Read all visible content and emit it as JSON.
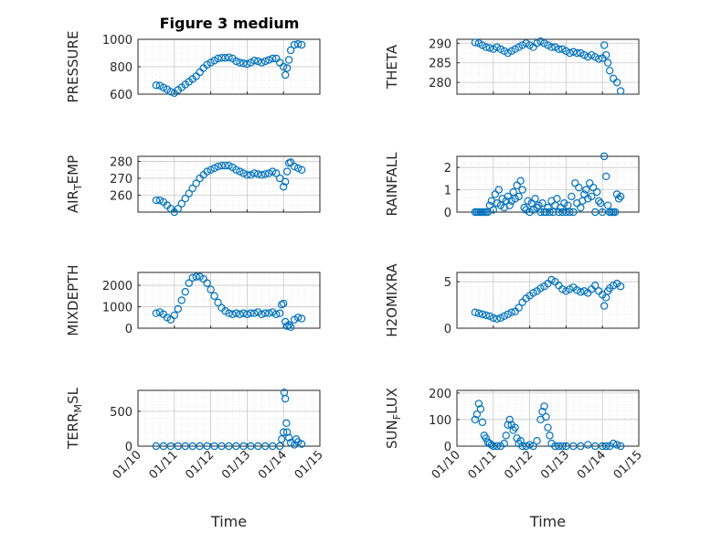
{
  "chart_data": {
    "type": "scatter",
    "title": "Figure 3 medium",
    "x_tick_labels": [
      "01/10",
      "01/11",
      "01/12",
      "01/13",
      "01/14",
      "01/15"
    ],
    "x_label": "Time",
    "marker_color": "#0072BD",
    "grid": true,
    "panels": [
      {
        "id": "pressure",
        "ylabel": "PRESSURE",
        "ylim": [
          600,
          1000
        ],
        "yticks": [
          600,
          800,
          1000
        ],
        "ytick_labels": [
          "600",
          "800",
          "1000"
        ],
        "x": [
          0.5,
          0.6,
          0.7,
          0.8,
          0.9,
          1.0,
          1.1,
          1.2,
          1.3,
          1.4,
          1.5,
          1.6,
          1.7,
          1.8,
          1.9,
          2.0,
          2.1,
          2.2,
          2.3,
          2.4,
          2.5,
          2.6,
          2.7,
          2.8,
          2.9,
          3.0,
          3.1,
          3.2,
          3.3,
          3.4,
          3.5,
          3.6,
          3.7,
          3.8,
          3.9,
          4.0,
          4.05,
          4.1,
          4.15,
          4.2,
          4.3,
          4.4,
          4.5
        ],
        "y": [
          665,
          662,
          648,
          635,
          618,
          608,
          630,
          650,
          670,
          690,
          710,
          730,
          760,
          790,
          815,
          830,
          845,
          860,
          865,
          865,
          868,
          860,
          840,
          830,
          825,
          820,
          830,
          845,
          840,
          830,
          840,
          850,
          860,
          860,
          830,
          800,
          740,
          790,
          850,
          920,
          960,
          965,
          960
        ]
      },
      {
        "id": "theta",
        "ylabel": "THETA",
        "ylim": [
          277,
          291
        ],
        "yticks": [
          280,
          285,
          290
        ],
        "ytick_labels": [
          "280",
          "285",
          "290"
        ],
        "x": [
          0.5,
          0.6,
          0.7,
          0.8,
          0.9,
          1.0,
          1.1,
          1.2,
          1.3,
          1.4,
          1.5,
          1.6,
          1.7,
          1.8,
          1.9,
          2.0,
          2.1,
          2.2,
          2.3,
          2.4,
          2.5,
          2.6,
          2.7,
          2.8,
          2.9,
          3.0,
          3.1,
          3.2,
          3.3,
          3.4,
          3.5,
          3.6,
          3.7,
          3.8,
          3.9,
          4.0,
          4.05,
          4.1,
          4.15,
          4.2,
          4.3,
          4.4,
          4.5
        ],
        "y": [
          290.2,
          290,
          289.5,
          289,
          288.8,
          288.5,
          289,
          288.5,
          288,
          287.5,
          288,
          288.5,
          289,
          289.5,
          290,
          289.5,
          289,
          290,
          290.5,
          290,
          289.5,
          289,
          289,
          288.5,
          288.5,
          288,
          287.5,
          287.8,
          287.5,
          287.5,
          287,
          286.5,
          287,
          286.5,
          286,
          286.2,
          289.5,
          287,
          285,
          283,
          281,
          280,
          277.8
        ]
      },
      {
        "id": "air_temp",
        "ylabel": "AIR_TEMP",
        "ylim": [
          250,
          283
        ],
        "yticks": [
          260,
          270,
          280
        ],
        "ytick_labels": [
          "260",
          "270",
          "280"
        ],
        "x": [
          0.5,
          0.6,
          0.7,
          0.8,
          0.9,
          1.0,
          1.1,
          1.2,
          1.3,
          1.4,
          1.5,
          1.6,
          1.7,
          1.8,
          1.9,
          2.0,
          2.1,
          2.2,
          2.3,
          2.4,
          2.5,
          2.6,
          2.7,
          2.8,
          2.9,
          3.0,
          3.1,
          3.2,
          3.3,
          3.4,
          3.5,
          3.6,
          3.7,
          3.8,
          3.9,
          4.0,
          4.05,
          4.1,
          4.15,
          4.2,
          4.3,
          4.4,
          4.5
        ],
        "y": [
          257,
          257,
          256,
          254,
          252,
          250,
          252,
          255,
          258,
          261,
          264,
          267,
          270,
          272,
          274,
          275,
          276,
          277,
          277.5,
          277.5,
          277.5,
          276.5,
          275,
          274,
          273,
          272,
          272,
          273,
          272.5,
          272,
          272.5,
          273,
          274,
          273,
          270,
          265,
          268,
          274,
          279,
          279.5,
          277,
          276,
          275
        ]
      },
      {
        "id": "rainfall",
        "ylabel": "RAINFALL",
        "ylim": [
          0,
          2.5
        ],
        "yticks": [
          0,
          1,
          2
        ],
        "ytick_labels": [
          "0",
          "1",
          "2"
        ],
        "x": [
          0.5,
          0.55,
          0.6,
          0.65,
          0.7,
          0.75,
          0.8,
          0.85,
          0.9,
          0.95,
          1.0,
          1.05,
          1.1,
          1.15,
          1.2,
          1.25,
          1.3,
          1.35,
          1.4,
          1.45,
          1.5,
          1.55,
          1.6,
          1.65,
          1.7,
          1.75,
          1.8,
          1.85,
          1.9,
          1.95,
          2.0,
          2.05,
          2.1,
          2.15,
          2.2,
          2.25,
          2.3,
          2.35,
          2.4,
          2.45,
          2.5,
          2.55,
          2.6,
          2.65,
          2.7,
          2.75,
          2.8,
          2.85,
          2.9,
          2.95,
          3.0,
          3.05,
          3.1,
          3.15,
          3.2,
          3.25,
          3.3,
          3.35,
          3.4,
          3.45,
          3.5,
          3.55,
          3.6,
          3.65,
          3.7,
          3.75,
          3.8,
          3.85,
          3.9,
          3.95,
          4.0,
          4.05,
          4.1,
          4.15,
          4.2,
          4.25,
          4.3,
          4.35,
          4.4,
          4.45,
          4.5
        ],
        "y": [
          0,
          0,
          0,
          0,
          0,
          0,
          0,
          0,
          0.3,
          0.5,
          0.1,
          0.8,
          0.4,
          1.0,
          0.3,
          0.6,
          0.2,
          0.5,
          0.7,
          0.3,
          0.5,
          0.9,
          0.6,
          1.2,
          0.7,
          1.4,
          1.0,
          0.2,
          0.1,
          0.5,
          0,
          0.4,
          0.1,
          0.6,
          0.2,
          0.3,
          0,
          0.4,
          0,
          0,
          0.2,
          0,
          0.5,
          0,
          0.3,
          0.6,
          0,
          0.2,
          0,
          0.4,
          0,
          0.3,
          0,
          0.7,
          0,
          1.3,
          0.4,
          1.1,
          0.2,
          0.5,
          0.8,
          1.0,
          0.6,
          1.3,
          0.7,
          1.1,
          0,
          0.9,
          0.5,
          0.4,
          0,
          2.5,
          1.6,
          0.3,
          0,
          0,
          0,
          0,
          0.8,
          0.6,
          0.7
        ]
      },
      {
        "id": "mixdepth",
        "ylabel": "MIXDEPTH",
        "ylim": [
          0,
          2600
        ],
        "yticks": [
          0,
          1000,
          2000
        ],
        "ytick_labels": [
          "0",
          "1000",
          "2000"
        ],
        "x": [
          0.5,
          0.6,
          0.7,
          0.8,
          0.9,
          1.0,
          1.1,
          1.2,
          1.3,
          1.4,
          1.5,
          1.6,
          1.7,
          1.8,
          1.9,
          2.0,
          2.1,
          2.2,
          2.3,
          2.4,
          2.5,
          2.6,
          2.7,
          2.8,
          2.9,
          3.0,
          3.1,
          3.2,
          3.3,
          3.4,
          3.5,
          3.6,
          3.7,
          3.8,
          3.9,
          3.95,
          4.0,
          4.05,
          4.1,
          4.15,
          4.2,
          4.3,
          4.4,
          4.5
        ],
        "y": [
          700,
          750,
          650,
          500,
          400,
          600,
          900,
          1300,
          1700,
          2100,
          2350,
          2400,
          2400,
          2300,
          2100,
          1800,
          1500,
          1200,
          950,
          800,
          700,
          650,
          700,
          650,
          700,
          650,
          700,
          700,
          750,
          650,
          700,
          700,
          750,
          650,
          700,
          1100,
          1150,
          300,
          100,
          150,
          50,
          400,
          500,
          450
        ]
      },
      {
        "id": "h2omixra",
        "ylabel": "H2OMIXRA",
        "ylim": [
          0,
          6
        ],
        "yticks": [
          0,
          5
        ],
        "ytick_labels": [
          "0",
          "5"
        ],
        "x": [
          0.5,
          0.6,
          0.7,
          0.8,
          0.9,
          1.0,
          1.1,
          1.2,
          1.3,
          1.4,
          1.5,
          1.6,
          1.7,
          1.8,
          1.9,
          2.0,
          2.1,
          2.2,
          2.3,
          2.4,
          2.5,
          2.6,
          2.7,
          2.8,
          2.9,
          3.0,
          3.1,
          3.2,
          3.3,
          3.4,
          3.5,
          3.6,
          3.7,
          3.8,
          3.9,
          4.0,
          4.05,
          4.1,
          4.15,
          4.2,
          4.3,
          4.4,
          4.5
        ],
        "y": [
          1.7,
          1.6,
          1.5,
          1.4,
          1.3,
          1.1,
          1.0,
          1.1,
          1.3,
          1.5,
          1.7,
          1.8,
          2.2,
          2.8,
          3.2,
          3.5,
          3.8,
          4.0,
          4.3,
          4.5,
          4.8,
          5.2,
          5.0,
          4.6,
          4.2,
          4.0,
          4.2,
          4.4,
          4.1,
          3.9,
          4.0,
          3.8,
          4.2,
          4.6,
          4.0,
          3.6,
          2.4,
          3.3,
          4.0,
          4.3,
          4.6,
          4.8,
          4.5
        ]
      },
      {
        "id": "terr_msl",
        "ylabel": "TERR_MSL",
        "ylim": [
          0,
          800
        ],
        "yticks": [
          0,
          500
        ],
        "ytick_labels": [
          "0",
          "500"
        ],
        "x": [
          0.5,
          0.7,
          0.9,
          1.1,
          1.3,
          1.5,
          1.7,
          1.9,
          2.1,
          2.3,
          2.5,
          2.7,
          2.9,
          3.1,
          3.3,
          3.5,
          3.7,
          3.9,
          3.95,
          4.0,
          4.02,
          4.05,
          4.08,
          4.1,
          4.15,
          4.2,
          4.3,
          4.35,
          4.4,
          4.5
        ],
        "y": [
          0,
          0,
          0,
          0,
          0,
          0,
          0,
          0,
          0,
          0,
          0,
          0,
          0,
          0,
          0,
          0,
          0,
          0,
          100,
          200,
          770,
          680,
          330,
          200,
          120,
          50,
          20,
          100,
          60,
          30
        ]
      },
      {
        "id": "sun_flux",
        "ylabel": "SUN_FLUX",
        "ylim": [
          0,
          210
        ],
        "yticks": [
          0,
          100,
          200
        ],
        "ytick_labels": [
          "0",
          "100",
          "200"
        ],
        "x": [
          0.5,
          0.55,
          0.6,
          0.65,
          0.7,
          0.75,
          0.8,
          0.85,
          0.9,
          0.95,
          1.0,
          1.1,
          1.2,
          1.3,
          1.35,
          1.4,
          1.45,
          1.5,
          1.55,
          1.6,
          1.65,
          1.7,
          1.75,
          1.8,
          1.9,
          2.0,
          2.1,
          2.2,
          2.3,
          2.35,
          2.4,
          2.45,
          2.5,
          2.55,
          2.6,
          2.7,
          2.8,
          2.9,
          3.0,
          3.2,
          3.4,
          3.6,
          3.8,
          4.0,
          4.1,
          4.2,
          4.3,
          4.4,
          4.5
        ],
        "y": [
          100,
          120,
          160,
          140,
          90,
          40,
          30,
          15,
          10,
          5,
          0,
          0,
          0,
          10,
          40,
          80,
          100,
          80,
          60,
          70,
          30,
          10,
          20,
          0,
          0,
          5,
          0,
          20,
          100,
          130,
          150,
          110,
          70,
          40,
          10,
          0,
          0,
          0,
          0,
          0,
          0,
          5,
          0,
          0,
          0,
          0,
          10,
          5,
          0
        ]
      }
    ]
  }
}
